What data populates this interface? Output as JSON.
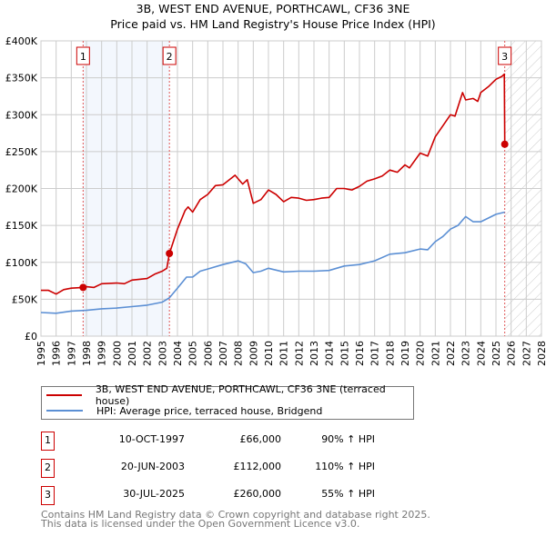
{
  "chart_data": {
    "type": "line",
    "title": "3B, WEST END AVENUE, PORTHCAWL, CF36 3NE",
    "subtitle": "Price paid vs. HM Land Registry's House Price Index (HPI)",
    "xlim": [
      1995,
      2028
    ],
    "ylim": [
      0,
      400000
    ],
    "y_ticks": [
      0,
      50000,
      100000,
      150000,
      200000,
      250000,
      300000,
      350000,
      400000
    ],
    "y_tick_labels": [
      "£0",
      "£50K",
      "£100K",
      "£150K",
      "£200K",
      "£250K",
      "£300K",
      "£350K",
      "£400K"
    ],
    "x_ticks": [
      "1995",
      "1996",
      "1997",
      "1998",
      "1999",
      "2000",
      "2001",
      "2002",
      "2003",
      "2004",
      "2005",
      "2006",
      "2007",
      "2008",
      "2009",
      "2010",
      "2011",
      "2012",
      "2013",
      "2014",
      "2015",
      "2016",
      "2017",
      "2018",
      "2019",
      "2020",
      "2021",
      "2022",
      "2023",
      "2024",
      "2025",
      "2026",
      "2027",
      "2028"
    ],
    "grid": true,
    "shaded_range": [
      1997.78,
      2003.47
    ],
    "forecast_hatch_from": 2025.58,
    "series": [
      {
        "name": "3B, WEST END AVENUE, PORTHCAWL, CF36 3NE (terraced house)",
        "color": "#cc0000",
        "x": [
          1995,
          1995.5,
          1996,
          1996.5,
          1997,
          1997.78,
          1998,
          1998.5,
          1999,
          2000,
          2000.5,
          2001,
          2002,
          2002.5,
          2003,
          2003.3,
          2003.47,
          2004,
          2004.5,
          2004.7,
          2005,
          2005.5,
          2006,
          2006.5,
          2007,
          2007.8,
          2008.3,
          2008.6,
          2009,
          2009.5,
          2010,
          2010.5,
          2011,
          2011.5,
          2012,
          2012.5,
          2013,
          2013.5,
          2014,
          2014.5,
          2015,
          2015.5,
          2016,
          2016.5,
          2017,
          2017.5,
          2018,
          2018.5,
          2019,
          2019.3,
          2020,
          2020.5,
          2021,
          2021.5,
          2022,
          2022.3,
          2022.8,
          2023,
          2023.5,
          2023.8,
          2024,
          2024.5,
          2025,
          2025.4,
          2025.55,
          2025.58
        ],
        "y": [
          62000,
          62000,
          57000,
          63000,
          65000,
          66000,
          67000,
          66000,
          71000,
          72000,
          71000,
          76000,
          78000,
          84000,
          88000,
          92000,
          112000,
          145000,
          170000,
          175000,
          168000,
          185000,
          192000,
          204000,
          205000,
          218000,
          206000,
          212000,
          180000,
          185000,
          198000,
          192000,
          182000,
          188000,
          187000,
          184000,
          185000,
          187000,
          188000,
          200000,
          200000,
          198000,
          203000,
          210000,
          213000,
          217000,
          225000,
          222000,
          232000,
          228000,
          248000,
          244000,
          270000,
          285000,
          300000,
          298000,
          330000,
          320000,
          322000,
          318000,
          330000,
          338000,
          348000,
          352000,
          355000,
          260000
        ]
      },
      {
        "name": "HPI: Average price, terraced house, Bridgend",
        "color": "#5b8fd4",
        "x": [
          1995,
          1996,
          1997,
          1998,
          1999,
          2000,
          2001,
          2002,
          2003,
          2003.47,
          2004,
          2004.6,
          2005,
          2005.5,
          2006,
          2007,
          2008,
          2008.5,
          2009,
          2009.5,
          2010,
          2011,
          2012,
          2013,
          2014,
          2015,
          2016,
          2017,
          2018,
          2019,
          2020,
          2020.5,
          2021,
          2021.5,
          2022,
          2022.5,
          2023,
          2023.5,
          2024,
          2024.5,
          2025,
          2025.58
        ],
        "y": [
          32000,
          31000,
          34000,
          35000,
          37000,
          38000,
          40000,
          42000,
          46000,
          52000,
          65000,
          80000,
          80000,
          88000,
          91000,
          97000,
          102000,
          98000,
          86000,
          88000,
          92000,
          87000,
          88000,
          88000,
          89000,
          95000,
          97000,
          102000,
          111000,
          113000,
          118000,
          117000,
          128000,
          135000,
          145000,
          150000,
          162000,
          155000,
          155000,
          160000,
          165000,
          168000
        ]
      }
    ],
    "sales": [
      {
        "label": "1",
        "x": 1997.78,
        "y": 66000,
        "date": "10-OCT-1997",
        "price": "£66,000",
        "hpi": "90% ↑ HPI"
      },
      {
        "label": "2",
        "x": 2003.47,
        "y": 112000,
        "date": "20-JUN-2003",
        "price": "£112,000",
        "hpi": "110% ↑ HPI"
      },
      {
        "label": "3",
        "x": 2025.58,
        "y": 260000,
        "date": "30-JUL-2025",
        "price": "£260,000",
        "hpi": "55% ↑ HPI"
      }
    ],
    "legend_position": "below"
  },
  "footer": [
    "Contains HM Land Registry data © Crown copyright and database right 2025.",
    "This data is licensed under the Open Government Licence v3.0."
  ]
}
